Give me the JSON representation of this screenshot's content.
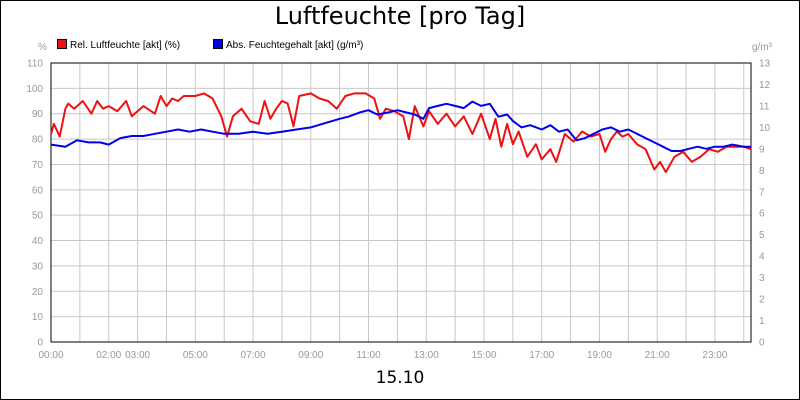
{
  "chart_data": {
    "type": "line",
    "title": "Luftfeuchte [pro Tag]",
    "date": "15.10",
    "y_left_unit": "%",
    "y_right_unit": "g/m³",
    "y_left_range": [
      0,
      110
    ],
    "y_right_range": [
      0,
      13
    ],
    "y_left_ticks": [
      "0",
      "10",
      "20",
      "30",
      "40",
      "50",
      "60",
      "70",
      "80",
      "90",
      "100",
      "110"
    ],
    "y_right_ticks": [
      "0",
      "1",
      "2",
      "3",
      "4",
      "5",
      "6",
      "7",
      "8",
      "9",
      "10",
      "11",
      "12",
      "13"
    ],
    "x_range_hours": [
      0,
      24.25
    ],
    "x_tick_labels": [
      "00:00",
      "02:00",
      "03:00",
      "05:00",
      "07:00",
      "09:00",
      "11:00",
      "13:00",
      "15:00",
      "17:00",
      "19:00",
      "21:00",
      "23:00"
    ],
    "x_tick_hours": [
      0,
      2,
      3,
      5,
      7,
      9,
      11,
      13,
      15,
      17,
      19,
      21,
      23
    ],
    "grid": true,
    "legend_position": "top-left",
    "series": [
      {
        "name": "Rel. Luftfeuchte [akt] (%)",
        "color": "#ee1111",
        "axis": "left",
        "x": [
          0,
          0.1,
          0.3,
          0.5,
          0.6,
          0.8,
          1.1,
          1.4,
          1.6,
          1.8,
          2.0,
          2.3,
          2.6,
          2.8,
          3.2,
          3.6,
          3.8,
          4.0,
          4.2,
          4.4,
          4.6,
          5.0,
          5.3,
          5.6,
          5.9,
          6.1,
          6.3,
          6.6,
          6.9,
          7.2,
          7.4,
          7.6,
          7.8,
          8.0,
          8.2,
          8.4,
          8.6,
          9.0,
          9.3,
          9.6,
          9.9,
          10.2,
          10.5,
          10.9,
          11.2,
          11.4,
          11.6,
          11.9,
          12.2,
          12.4,
          12.6,
          12.9,
          13.1,
          13.4,
          13.7,
          14.0,
          14.3,
          14.6,
          14.9,
          15.2,
          15.4,
          15.6,
          15.8,
          16.0,
          16.2,
          16.5,
          16.8,
          17.0,
          17.3,
          17.5,
          17.8,
          18.1,
          18.4,
          18.7,
          19.0,
          19.2,
          19.4,
          19.6,
          19.8,
          20.0,
          20.3,
          20.6,
          20.9,
          21.1,
          21.3,
          21.6,
          21.9,
          22.2,
          22.5,
          22.8,
          23.1,
          23.4,
          23.7,
          24.0,
          24.25
        ],
        "values": [
          82,
          86,
          81,
          92,
          94,
          92,
          95,
          90,
          95,
          92,
          93,
          91,
          95,
          89,
          93,
          90,
          97,
          93,
          96,
          95,
          97,
          97,
          98,
          96,
          89,
          81,
          89,
          92,
          87,
          86,
          95,
          88,
          92,
          95,
          94,
          85,
          97,
          98,
          96,
          95,
          92,
          97,
          98,
          98,
          96,
          88,
          92,
          91,
          89,
          80,
          93,
          85,
          91,
          86,
          90,
          85,
          89,
          82,
          90,
          80,
          88,
          77,
          86,
          78,
          83,
          73,
          78,
          72,
          76,
          71,
          82,
          79,
          83,
          81,
          82,
          75,
          80,
          83,
          81,
          82,
          78,
          76,
          68,
          71,
          67,
          73,
          75,
          71,
          73,
          76,
          75,
          77,
          77,
          77,
          76
        ]
      },
      {
        "name": "Abs. Feuchtegehalt [akt] (g/m³)",
        "color": "#0000ee",
        "axis": "right",
        "x": [
          0,
          0.5,
          0.9,
          1.3,
          1.7,
          2.0,
          2.4,
          2.8,
          3.2,
          3.6,
          4.0,
          4.4,
          4.8,
          5.2,
          5.6,
          6.0,
          6.5,
          7.0,
          7.5,
          8.0,
          8.5,
          9.0,
          9.5,
          10.0,
          10.3,
          10.7,
          11.0,
          11.3,
          11.7,
          12.0,
          12.3,
          12.6,
          12.9,
          13.1,
          13.4,
          13.7,
          14.0,
          14.3,
          14.6,
          14.9,
          15.2,
          15.5,
          15.8,
          16.0,
          16.3,
          16.6,
          17.0,
          17.3,
          17.6,
          17.9,
          18.2,
          18.5,
          18.8,
          19.1,
          19.4,
          19.7,
          20.0,
          20.3,
          20.6,
          20.9,
          21.2,
          21.5,
          21.8,
          22.1,
          22.4,
          22.7,
          23.0,
          23.3,
          23.6,
          24.0,
          24.25
        ],
        "values": [
          9.2,
          9.1,
          9.4,
          9.3,
          9.3,
          9.2,
          9.5,
          9.6,
          9.6,
          9.7,
          9.8,
          9.9,
          9.8,
          9.9,
          9.8,
          9.7,
          9.7,
          9.8,
          9.7,
          9.8,
          9.9,
          10.0,
          10.2,
          10.4,
          10.5,
          10.7,
          10.8,
          10.6,
          10.7,
          10.8,
          10.7,
          10.6,
          10.4,
          10.9,
          11.0,
          11.1,
          11.0,
          10.9,
          11.2,
          11.0,
          11.1,
          10.5,
          10.6,
          10.3,
          10.0,
          10.1,
          9.9,
          10.1,
          9.8,
          9.9,
          9.4,
          9.5,
          9.7,
          9.9,
          10.0,
          9.8,
          9.9,
          9.7,
          9.5,
          9.3,
          9.1,
          8.9,
          8.9,
          9.0,
          9.1,
          9.0,
          9.1,
          9.1,
          9.2,
          9.1,
          9.1
        ]
      }
    ]
  }
}
